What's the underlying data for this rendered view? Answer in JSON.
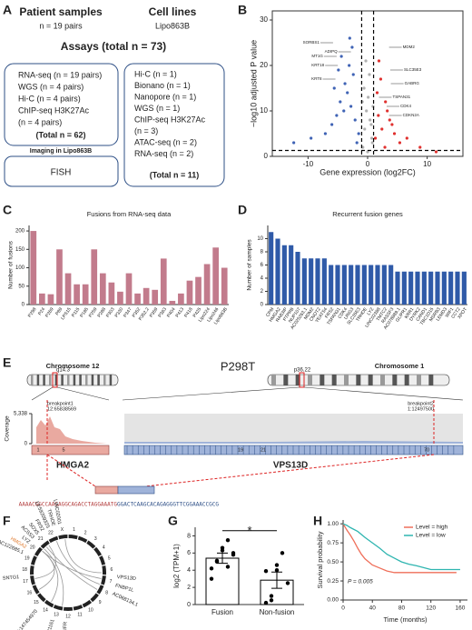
{
  "panel_labels": [
    "A",
    "B",
    "C",
    "D",
    "E",
    "F",
    "G",
    "H"
  ],
  "panel_a": {
    "patient_title": "Patient samples",
    "patient_n": "n = 19 pairs",
    "cell_title": "Cell lines",
    "cell_name": "Lipo863B",
    "assays_title": "Assays (total n = 73)",
    "patient_assays": [
      "RNA-seq (n = 19 pairs)",
      "WGS (n = 4 pairs)",
      "Hi-C (n = 4 pairs)",
      "ChIP-seq H3K27Ac",
      "(n = 4 pairs)"
    ],
    "patient_total": "(Total n = 62)",
    "imaging_title": "Imaging in Lipo863B",
    "imaging": "FISH",
    "cell_assays": [
      "Hi-C (n = 1)",
      "Bionano (n = 1)",
      "Nanopore (n = 1)",
      "WGS (n = 1)",
      "ChIP-seq H3K27Ac",
      "(n = 3)",
      "ATAC-seq (n = 2)",
      "RNA-seq (n = 2)"
    ],
    "cell_total": "(Total n = 11)"
  },
  "panel_b": {
    "type": "scatter",
    "xlabel": "Gene expression (log2FC)",
    "ylabel": "−log10 adjusted P value",
    "xlim": [
      -16,
      16
    ],
    "ylim": [
      0,
      32
    ],
    "xticks": [
      -10,
      0,
      10
    ],
    "yticks": [
      0,
      10,
      20,
      30
    ],
    "thresholds_x": [
      -1,
      1
    ],
    "threshold_y": 1.3,
    "groups": [
      {
        "color": "#3f63b5",
        "x": [
          -1.5,
          -2.1,
          -2.8,
          -3.4,
          -4.0,
          -4.6,
          -5.2,
          -6.0,
          -7.1,
          -2.4,
          -3.1,
          -3.8,
          -4.4,
          -1.8,
          -2.6,
          -5.6,
          -9.5,
          -12.4,
          -3.0,
          -4.9
        ],
        "y": [
          5,
          8,
          11,
          14,
          10,
          12,
          9,
          7,
          5,
          18,
          20,
          16,
          22,
          3,
          24,
          15,
          4,
          3,
          26,
          19
        ]
      },
      {
        "color": "#b0b0b0",
        "x": [
          -0.8,
          -0.5,
          -0.2,
          0.1,
          0.4,
          0.7,
          -0.6,
          0.3,
          0.9,
          -0.9,
          0.0,
          0.6,
          -0.3,
          0.8
        ],
        "y": [
          2,
          6,
          10,
          13,
          8,
          4,
          15,
          18,
          11,
          12,
          1,
          7,
          21,
          3
        ]
      },
      {
        "color": "#e0312f",
        "x": [
          1.3,
          1.8,
          2.4,
          3.0,
          3.7,
          4.5,
          5.4,
          1.6,
          2.2,
          2.9,
          6.6,
          8.8,
          11.5,
          1.9,
          3.3,
          4.1
        ],
        "y": [
          4,
          9,
          6,
          12,
          8,
          5,
          3,
          14,
          17,
          2,
          4,
          2,
          1,
          21,
          10,
          7
        ]
      }
    ],
    "genes": [
      {
        "label": "SORBS1",
        "x": -5.8,
        "y": 25
      },
      {
        "label": "MT1G",
        "x": -5.2,
        "y": 22
      },
      {
        "label": "KRT18",
        "x": -5.0,
        "y": 20
      },
      {
        "label": "KRT8",
        "x": -5.4,
        "y": 17
      },
      {
        "label": "ADIPQ",
        "x": -2.8,
        "y": 23
      },
      {
        "label": "MDM2",
        "x": 3.6,
        "y": 24
      },
      {
        "label": "SLC35E3",
        "x": 3.8,
        "y": 19
      },
      {
        "label": "GABRG",
        "x": 3.9,
        "y": 16
      },
      {
        "label": "TSPAN31",
        "x": 1.9,
        "y": 13
      },
      {
        "label": "CDK4",
        "x": 3.2,
        "y": 11
      },
      {
        "label": "CDKN2A",
        "x": 3.6,
        "y": 9
      }
    ]
  },
  "panel_c": {
    "type": "bar",
    "title": "Fusions from RNA-seq data",
    "ylabel": "Number of fusions",
    "color": "#c27b8c",
    "ylim": [
      0,
      215
    ],
    "yticks": [
      0,
      50,
      100,
      150,
      200
    ],
    "categories": [
      "P298",
      "P24",
      "P269",
      "P89",
      "LPS15",
      "P115",
      "P185",
      "P259",
      "P288",
      "P303",
      "P330",
      "P347",
      "P352",
      "P352.2",
      "P359",
      "P363",
      "P404",
      "P413",
      "P418",
      "P425",
      "Lipo224",
      "Lipo246",
      "Lipo863B"
    ],
    "values": [
      200,
      30,
      28,
      150,
      85,
      55,
      55,
      150,
      85,
      60,
      35,
      85,
      30,
      45,
      40,
      125,
      10,
      30,
      65,
      75,
      110,
      155,
      100
    ]
  },
  "panel_d": {
    "type": "bar",
    "title": "Recurrent fusion genes",
    "ylabel": "Number of samples",
    "color": "#2f5aa8",
    "ylim": [
      0,
      12
    ],
    "yticks": [
      0,
      2,
      4,
      6,
      8,
      10
    ],
    "categories": [
      "CPM",
      "HMGA2",
      "RAB3IP",
      "PTPRB",
      "NUP107",
      "AC025263.1",
      "MDM2",
      "CNOT2",
      "YEATS4",
      "FRS2",
      "TSPAN31",
      "CDK4",
      "LRIG3",
      "SLC35E3",
      "TRHDE",
      "LYZ",
      "LINC02388",
      "TMTC2",
      "RASSF3",
      "AC078889.1",
      "GLIPR1",
      "KRR1",
      "DYRK2",
      "CAND1",
      "TBC1D15",
      "MSRB3",
      "LEMD3",
      "WIF1",
      "CCT2",
      "XPOT"
    ],
    "values": [
      11,
      10,
      9,
      9,
      8,
      7,
      7,
      7,
      7,
      6,
      6,
      6,
      6,
      6,
      6,
      6,
      6,
      6,
      6,
      5,
      5,
      5,
      5,
      5,
      5,
      5,
      5,
      5,
      5,
      5
    ]
  },
  "panel_e": {
    "title": "P298T",
    "chrom_left": "Chromosome 12",
    "band_left": "q14.3",
    "chrom_right": "Chromosome 1",
    "band_right": "p36.22",
    "breakpoint1": "breakpoint1",
    "bp1_pos": "12:65838569",
    "breakpoint2": "breakpoint2",
    "bp2_pos": "1:12497500",
    "ylabel": "Coverage",
    "ylim": [
      0,
      5338
    ],
    "yticks": [
      {
        "value": 5338,
        "label": "5,338"
      },
      0
    ],
    "gene_left": "HMGA2",
    "gene_right": "VPS13D",
    "exons_left": [
      "1",
      "5"
    ],
    "exons_right": [
      "19",
      "21",
      "70"
    ],
    "sequence_left": "AAAACGGCCAAGAGGCAGACCTAGGAAATG",
    "sequence_right": "GGACTCAAGCACAGAGGGTTCGGAAACCGCG"
  },
  "panel_f": {
    "chromosomes": [
      "1",
      "2",
      "3",
      "4",
      "5",
      "6",
      "7",
      "8",
      "9",
      "10",
      "11",
      "12",
      "13",
      "14",
      "15",
      "16",
      "17",
      "18",
      "19",
      "20",
      "21",
      "22",
      "X"
    ],
    "labels": [
      "LINC02001",
      "TRHDE",
      "13:59209325",
      "FRS2",
      "SOX5",
      "ACSS3",
      "LYZ",
      "HMGA2",
      "AC122685.1",
      "SNTG1",
      "6:147454970",
      "5:90031161",
      "LIFR",
      "AC068134.1",
      "FNBP1L",
      "VPS13D"
    ]
  },
  "panel_g": {
    "type": "bar",
    "ylabel": "log2 (TPM+1)",
    "categories": [
      "Fusion",
      "Non-fusion"
    ],
    "values": [
      5.4,
      2.84
    ],
    "errors": [
      0.6,
      0.95
    ],
    "points": [
      [
        4.2,
        5.0,
        6.3,
        7.5,
        5.8,
        3.0,
        5.1,
        6.6,
        4.4,
        6.0
      ],
      [
        0.2,
        0.5,
        4.6,
        6.0,
        2.5,
        3.9,
        1.0,
        4.0
      ]
    ],
    "significance": "*",
    "ylim": [
      0,
      9
    ],
    "yticks": [
      0,
      2,
      4,
      6,
      8
    ]
  },
  "panel_h": {
    "type": "line",
    "ylabel": "Survival probability",
    "xlabel": "Time (months)",
    "xlim": [
      0,
      170
    ],
    "ylim": [
      0,
      1.05
    ],
    "xticks": [
      0,
      40,
      80,
      120,
      160
    ],
    "yticks": [
      {
        "value": 0,
        "label": "0.00"
      },
      {
        "value": 0.25,
        "label": "0.25"
      },
      {
        "value": 0.5,
        "label": "0.50"
      },
      {
        "value": 0.75,
        "label": "0.75"
      },
      {
        "value": 1,
        "label": "1.00"
      }
    ],
    "series": [
      {
        "name": "Level = high",
        "color": "#ef6f5a",
        "x": [
          0,
          5,
          10,
          15,
          20,
          25,
          30,
          40,
          50,
          60,
          70,
          80,
          100,
          120,
          140,
          155
        ],
        "y": [
          1,
          0.92,
          0.85,
          0.77,
          0.68,
          0.6,
          0.54,
          0.46,
          0.42,
          0.38,
          0.36,
          0.36,
          0.36,
          0.36,
          0.36,
          0.36
        ]
      },
      {
        "name": "Level = low",
        "color": "#2fb5b0",
        "x": [
          0,
          5,
          10,
          20,
          30,
          40,
          50,
          60,
          70,
          80,
          90,
          100,
          120,
          140,
          160
        ],
        "y": [
          1,
          0.98,
          0.95,
          0.9,
          0.82,
          0.75,
          0.68,
          0.6,
          0.55,
          0.5,
          0.47,
          0.45,
          0.4,
          0.4,
          0.4
        ]
      }
    ],
    "pvalue": "P = 0.005"
  }
}
